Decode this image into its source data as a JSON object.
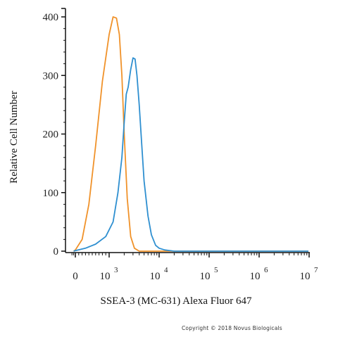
{
  "chart_data": {
    "type": "line",
    "title": "",
    "xlabel": "SSEA-3 (MC-631) Alexa Fluor 647",
    "ylabel": "Relative Cell Number",
    "x_scale": "biexponential",
    "ylim": [
      0,
      400
    ],
    "yticks": [
      "0",
      "100",
      "200",
      "300",
      "400"
    ],
    "xticks": [
      {
        "base": "0",
        "exp": ""
      },
      {
        "base": "10",
        "exp": "3"
      },
      {
        "base": "10",
        "exp": "4"
      },
      {
        "base": "10",
        "exp": "5"
      },
      {
        "base": "10",
        "exp": "6"
      },
      {
        "base": "10",
        "exp": "7"
      }
    ],
    "grid": false,
    "legend": "none",
    "series": [
      {
        "color": "#f0922a",
        "x": [
          -50,
          0,
          200,
          400,
          600,
          800,
          1000,
          1200,
          1400,
          1600,
          1800,
          2000,
          2300,
          2700,
          3200,
          4000,
          6000,
          10000000
        ],
        "y": [
          0,
          2,
          20,
          80,
          180,
          290,
          370,
          400,
          398,
          370,
          300,
          200,
          90,
          25,
          5,
          0,
          0,
          0
        ]
      },
      {
        "color": "#2e8fd0",
        "x": [
          -50,
          0,
          300,
          600,
          900,
          1200,
          1500,
          1800,
          2000,
          2200,
          2400,
          2700,
          3000,
          3300,
          3600,
          4000,
          4500,
          5000,
          6000,
          7000,
          8500,
          10000,
          13000,
          20000,
          10000000
        ],
        "y": [
          0,
          1,
          5,
          12,
          25,
          50,
          100,
          160,
          220,
          268,
          280,
          310,
          330,
          328,
          300,
          250,
          180,
          120,
          60,
          28,
          10,
          5,
          2,
          0,
          0
        ]
      }
    ]
  },
  "copyright": "Copyright © 2018 Novus Biologicals"
}
